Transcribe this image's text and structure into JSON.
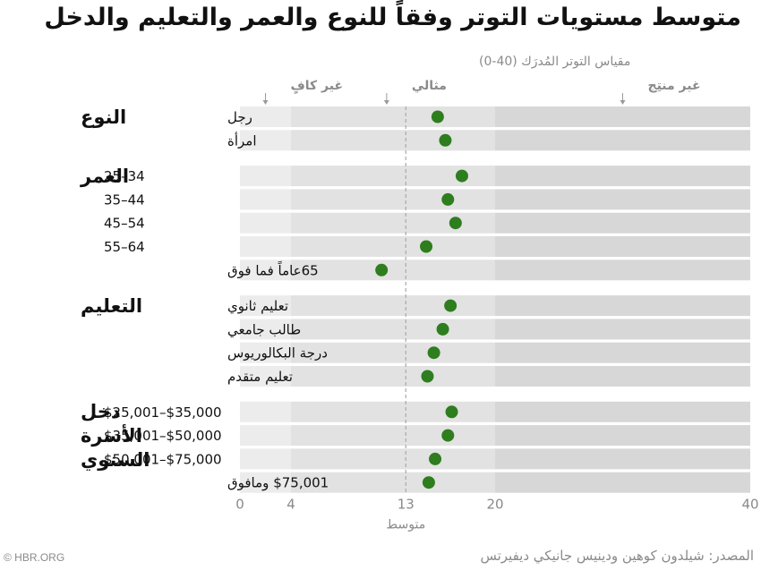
{
  "title": "متوسط مستويات التوتر وفقاً للنوع والعمر والتعليم والدخل",
  "credit": "© HBR.ORG",
  "source": "المصدر: شيلدون كوهين ودينيس جانيكي ديفيرتس",
  "chart_data": {
    "type": "scatter",
    "xlabel": "مقياس التوتر المُدرَك (40-0)",
    "xlim": [
      0,
      40
    ],
    "xticks": [
      "0",
      "4",
      "13",
      "20",
      "40"
    ],
    "average_label": "متوسط",
    "average_value": 13,
    "bands": [
      {
        "from": 0,
        "to": 4,
        "color": "#ececec"
      },
      {
        "from": 4,
        "to": 20,
        "color": "#e2e2e2"
      },
      {
        "from": 20,
        "to": 40,
        "color": "#d7d7d7"
      }
    ],
    "zone_labels": [
      {
        "label": "غير كافٍ",
        "value": 2
      },
      {
        "label": "مثالي",
        "value": 11.5
      },
      {
        "label": "غير منتِج",
        "value": 30
      }
    ],
    "marker_color": "#2e7d1e",
    "groups": [
      {
        "name": "النوع",
        "rows": [
          {
            "label": "رجل",
            "value": 15.5
          },
          {
            "label": "امرأة",
            "value": 16.1
          }
        ]
      },
      {
        "name": "العمر",
        "rows": [
          {
            "label": "25–34",
            "value": 17.4
          },
          {
            "label": "35–44",
            "value": 16.3
          },
          {
            "label": "45–54",
            "value": 16.9
          },
          {
            "label": "55–64",
            "value": 14.6
          },
          {
            "label": "65عاماً فما فوق",
            "value": 11.1
          }
        ]
      },
      {
        "name": "التعليم",
        "rows": [
          {
            "label": "تعليم ثانوي",
            "value": 16.5
          },
          {
            "label": "طالب جامعي",
            "value": 15.9
          },
          {
            "label": "درجة البكالوريوس",
            "value": 15.2
          },
          {
            "label": "تعليم متقدم",
            "value": 14.7
          }
        ]
      },
      {
        "name": "دخل الأسرة السنوي",
        "name_lines": [
          "دخل",
          "الأسرة",
          "السنوي"
        ],
        "rows": [
          {
            "label": "$25,001–$35,000",
            "value": 16.6
          },
          {
            "label": "$35,001–$50,000",
            "value": 16.3
          },
          {
            "label": "$50,001–$75,000",
            "value": 15.3
          },
          {
            "label": "$75,001    ومافوق",
            "value": 14.8
          }
        ]
      }
    ]
  }
}
